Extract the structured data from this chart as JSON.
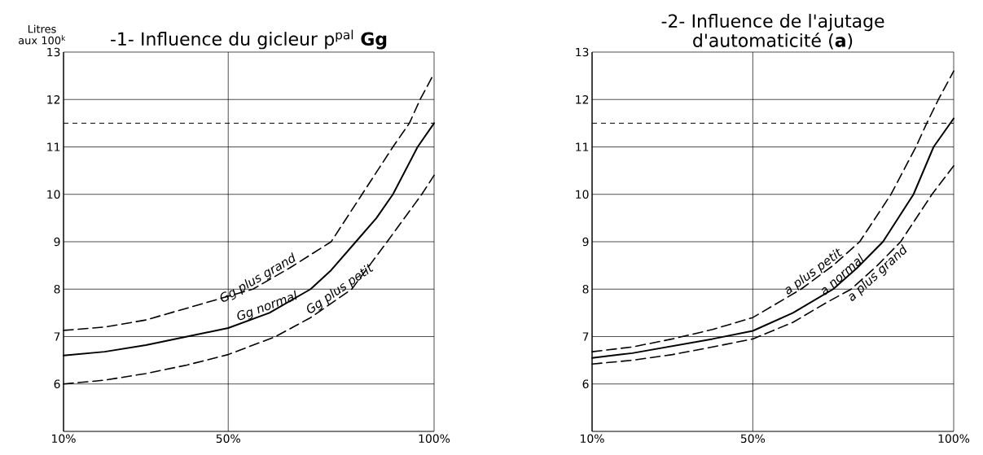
{
  "chart_data": [
    {
      "type": "line",
      "title": "-1- Influence du gicleur p$^{pal}$ **Gg**",
      "ylabel": "Litres aux 100$^{k}$",
      "xlim": [
        10,
        100
      ],
      "ylim": [
        5,
        13
      ],
      "xticks": [
        {
          "value": 10,
          "label": "10%"
        },
        {
          "value": 50,
          "label": "50%"
        },
        {
          "value": 100,
          "label": "100%"
        }
      ],
      "yticks": [
        6,
        7,
        8,
        9,
        10,
        11,
        12,
        13
      ],
      "grid": true,
      "ref_lines": [
        {
          "axis": "y",
          "value": 11.5,
          "line_style": "dashed"
        }
      ],
      "series": [
        {
          "name": "Gg plus grand",
          "color": "#000000",
          "line_style": "dashed",
          "x": [
            10,
            20,
            30,
            40,
            50,
            56,
            65,
            75,
            82.5,
            90,
            94,
            96.6,
            100
          ],
          "values": [
            7.13,
            7.2,
            7.35,
            7.6,
            7.85,
            8.0,
            8.45,
            9.0,
            10.0,
            11.0,
            11.5,
            12.0,
            12.55
          ]
        },
        {
          "name": "Gg normal",
          "color": "#000000",
          "line_style": "solid",
          "x": [
            10,
            20,
            30,
            40,
            50,
            60,
            70,
            75,
            81,
            86,
            90,
            96,
            100
          ],
          "values": [
            6.6,
            6.68,
            6.82,
            7.0,
            7.18,
            7.5,
            8.0,
            8.4,
            9.0,
            9.5,
            10.0,
            11.0,
            11.5
          ]
        },
        {
          "name": "Gg plus petit",
          "color": "#000000",
          "line_style": "dashed",
          "x": [
            10,
            20,
            30,
            40,
            50,
            61.5,
            70,
            80,
            88.6,
            97,
            100
          ],
          "values": [
            6.0,
            6.08,
            6.22,
            6.4,
            6.62,
            7.0,
            7.4,
            8.0,
            9.0,
            10.0,
            10.4
          ]
        }
      ]
    },
    {
      "type": "line",
      "title": "-2- Influence de l'ajutage d'automaticité (**a**)",
      "xlim": [
        10,
        100
      ],
      "ylim": [
        5,
        13
      ],
      "xticks": [
        {
          "value": 10,
          "label": "10%"
        },
        {
          "value": 50,
          "label": "50%"
        },
        {
          "value": 100,
          "label": "100%"
        }
      ],
      "yticks": [
        6,
        7,
        8,
        9,
        10,
        11,
        12,
        13
      ],
      "grid": true,
      "ref_lines": [
        {
          "axis": "y",
          "value": 11.5,
          "line_style": "dashed"
        }
      ],
      "series": [
        {
          "name": "a plus petit",
          "color": "#000000",
          "line_style": "dashed",
          "x": [
            10,
            20,
            30,
            40,
            50,
            62,
            70,
            76.6,
            84.4,
            90.6,
            93.3,
            96.2,
            100
          ],
          "values": [
            6.68,
            6.78,
            6.95,
            7.15,
            7.4,
            8.0,
            8.5,
            9.0,
            10.0,
            11.0,
            11.5,
            12.0,
            12.6
          ]
        },
        {
          "name": "a normal",
          "color": "#000000",
          "line_style": "solid",
          "x": [
            10,
            20,
            30,
            40,
            50,
            60,
            70,
            76,
            82.4,
            90,
            95,
            100
          ],
          "values": [
            6.55,
            6.65,
            6.8,
            6.95,
            7.12,
            7.5,
            8.0,
            8.45,
            9.0,
            10.0,
            11.0,
            11.6
          ]
        },
        {
          "name": "a plus grand",
          "color": "#000000",
          "line_style": "dashed",
          "x": [
            10,
            20,
            30,
            40,
            50,
            60,
            68,
            74.5,
            81,
            86.8,
            94.6,
            100
          ],
          "values": [
            6.42,
            6.5,
            6.62,
            6.78,
            6.95,
            7.3,
            7.7,
            8.0,
            8.5,
            9.0,
            10.0,
            10.6
          ]
        }
      ]
    }
  ]
}
